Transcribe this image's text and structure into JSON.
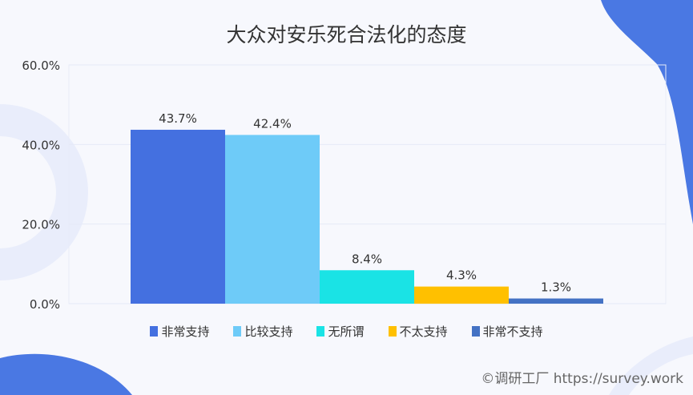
{
  "chart_data": {
    "type": "bar",
    "title": "大众对安乐死合法化的态度",
    "categories": [
      "非常支持",
      "比较支持",
      "无所谓",
      "不太支持",
      "非常不支持"
    ],
    "values": [
      43.7,
      42.4,
      8.4,
      4.3,
      1.3
    ],
    "data_labels": [
      "43.7%",
      "42.4%",
      "8.4%",
      "4.3%",
      "1.3%"
    ],
    "colors": [
      "#4470e0",
      "#6ecbf8",
      "#1ae3e5",
      "#ffc000",
      "#4472c4"
    ],
    "ylim": [
      0,
      60
    ],
    "yticks": [
      0,
      20,
      40,
      60
    ],
    "ytick_labels": [
      "0.0%",
      "20.0%",
      "40.0%",
      "60.0%"
    ],
    "xlabel": "",
    "ylabel": "",
    "grid": true,
    "legend_placement": "bottom"
  },
  "footer": "©调研工厂 https://survey.work"
}
